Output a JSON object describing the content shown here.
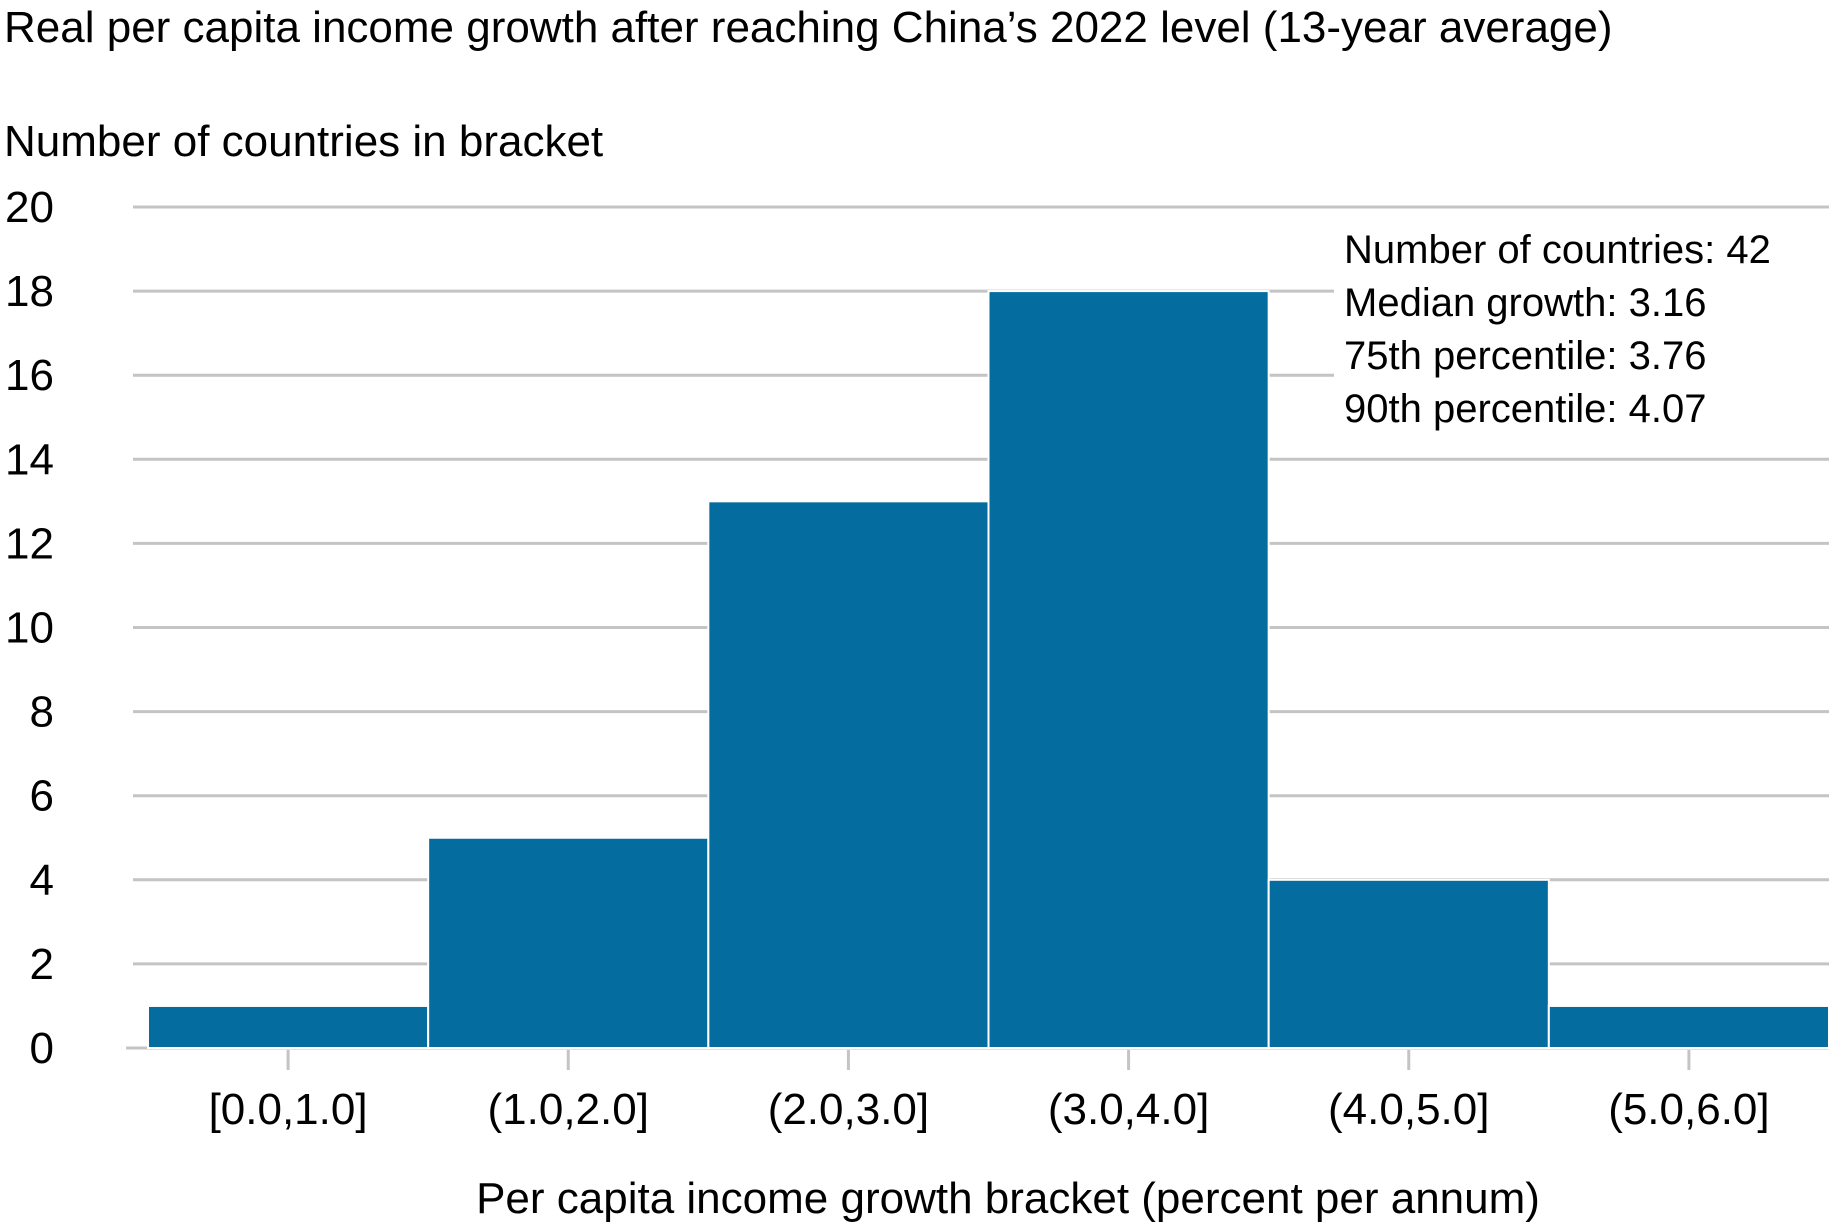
{
  "chart_data": {
    "type": "bar",
    "title": "Real per capita income growth after reaching China’s 2022 level (13-year average)",
    "ylabel": "Number of countries in bracket",
    "xlabel": "Per capita income growth bracket (percent per annum)",
    "categories": [
      "[0.0,1.0]",
      "(1.0,2.0]",
      "(2.0,3.0]",
      "(3.0,4.0]",
      "(4.0,5.0]",
      "(5.0,6.0]"
    ],
    "values": [
      1,
      5,
      13,
      18,
      4,
      1
    ],
    "ylim": [
      0,
      20
    ],
    "yticks": [
      0,
      2,
      4,
      6,
      8,
      10,
      12,
      14,
      16,
      18,
      20
    ],
    "grid": true,
    "legend": "none",
    "bar_color": "#056c9f",
    "annotations": [
      "Number of countries: 42",
      "Median growth: 3.16",
      "75th percentile: 3.76",
      "90th percentile: 4.07"
    ]
  }
}
